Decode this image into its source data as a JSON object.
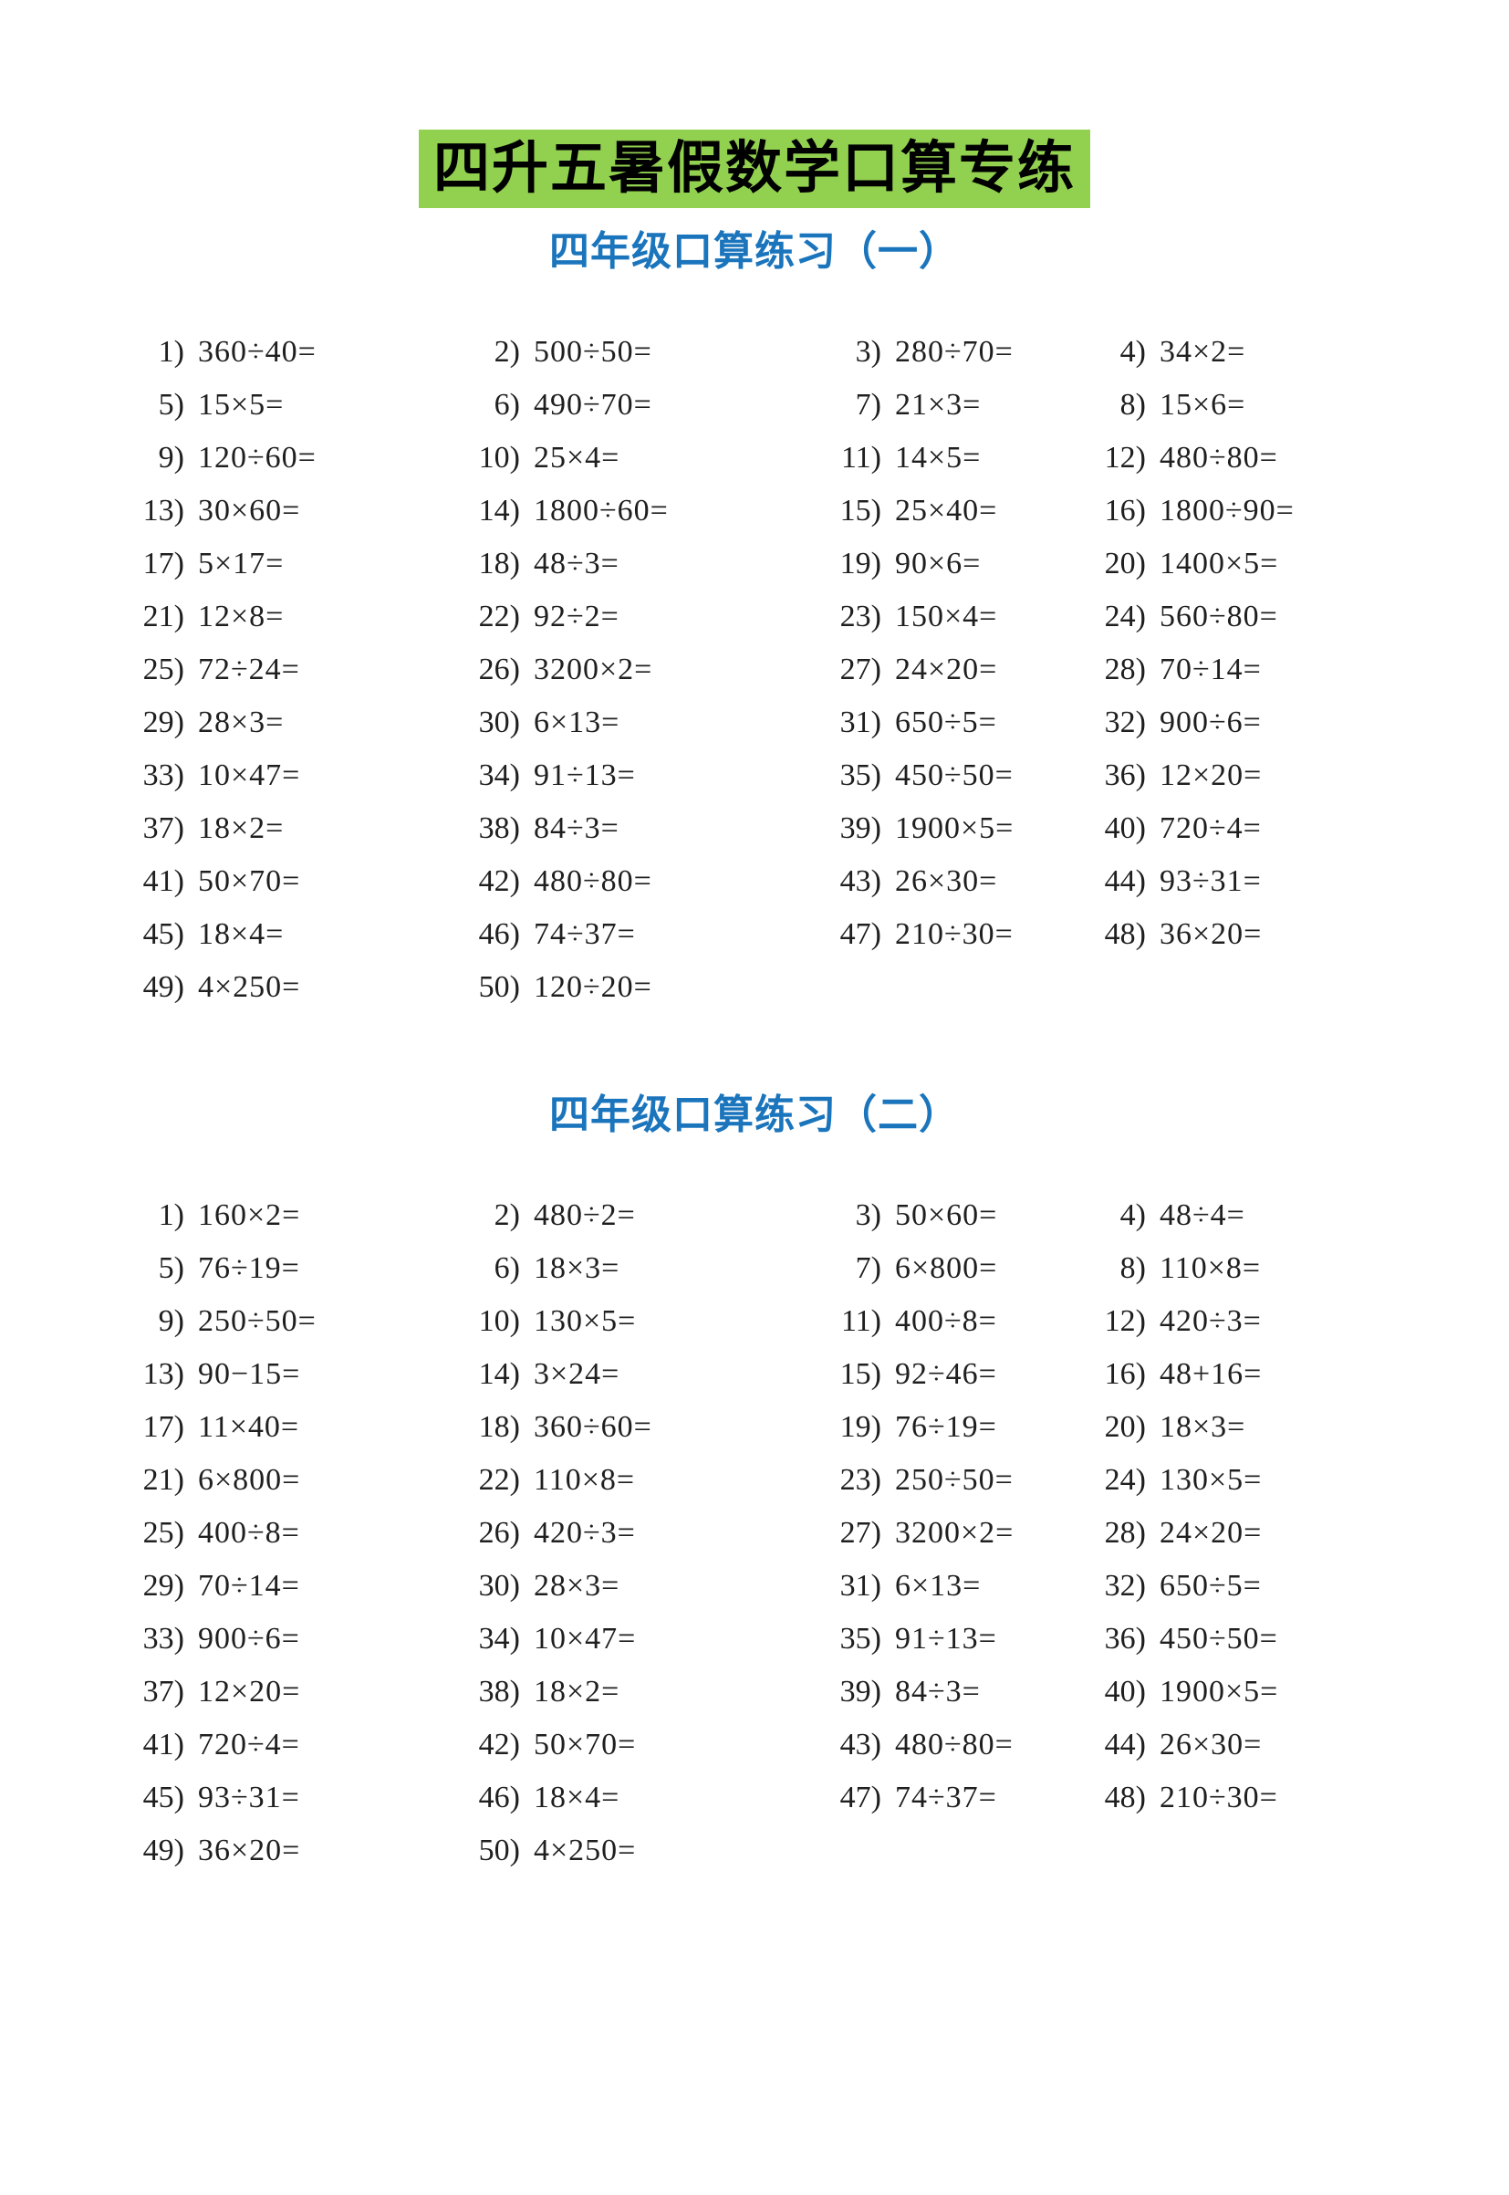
{
  "document": {
    "title": "四升五暑假数学口算专练",
    "colors": {
      "title_highlight": "#92d050",
      "heading_blue": "#1b75bc",
      "text": "#1f1f1f",
      "page_background": "#ffffff"
    }
  },
  "sections": [
    {
      "heading": "四年级口算练习（一）",
      "problems": [
        {
          "n": "1)",
          "expr": "360÷40="
        },
        {
          "n": "2)",
          "expr": "500÷50="
        },
        {
          "n": "3)",
          "expr": "280÷70="
        },
        {
          "n": "4)",
          "expr": "34×2="
        },
        {
          "n": "5)",
          "expr": "15×5="
        },
        {
          "n": "6)",
          "expr": "490÷70="
        },
        {
          "n": "7)",
          "expr": "21×3="
        },
        {
          "n": "8)",
          "expr": "15×6="
        },
        {
          "n": "9)",
          "expr": "120÷60="
        },
        {
          "n": "10)",
          "expr": "25×4="
        },
        {
          "n": "11)",
          "expr": "14×5="
        },
        {
          "n": "12)",
          "expr": "480÷80="
        },
        {
          "n": "13)",
          "expr": "30×60="
        },
        {
          "n": "14)",
          "expr": "1800÷60="
        },
        {
          "n": "15)",
          "expr": "25×40="
        },
        {
          "n": "16)",
          "expr": "1800÷90="
        },
        {
          "n": "17)",
          "expr": "5×17="
        },
        {
          "n": "18)",
          "expr": "48÷3="
        },
        {
          "n": "19)",
          "expr": "90×6="
        },
        {
          "n": "20)",
          "expr": "1400×5="
        },
        {
          "n": "21)",
          "expr": "12×8="
        },
        {
          "n": "22)",
          "expr": "92÷2="
        },
        {
          "n": "23)",
          "expr": "150×4="
        },
        {
          "n": "24)",
          "expr": "560÷80="
        },
        {
          "n": "25)",
          "expr": "72÷24="
        },
        {
          "n": "26)",
          "expr": "3200×2="
        },
        {
          "n": "27)",
          "expr": "24×20="
        },
        {
          "n": "28)",
          "expr": "70÷14="
        },
        {
          "n": "29)",
          "expr": "28×3="
        },
        {
          "n": "30)",
          "expr": "6×13="
        },
        {
          "n": "31)",
          "expr": "650÷5="
        },
        {
          "n": "32)",
          "expr": "900÷6="
        },
        {
          "n": "33)",
          "expr": "10×47="
        },
        {
          "n": "34)",
          "expr": "91÷13="
        },
        {
          "n": "35)",
          "expr": "450÷50="
        },
        {
          "n": "36)",
          "expr": "12×20="
        },
        {
          "n": "37)",
          "expr": "18×2="
        },
        {
          "n": "38)",
          "expr": "84÷3="
        },
        {
          "n": "39)",
          "expr": "1900×5="
        },
        {
          "n": "40)",
          "expr": "720÷4="
        },
        {
          "n": "41)",
          "expr": "50×70="
        },
        {
          "n": "42)",
          "expr": "480÷80="
        },
        {
          "n": "43)",
          "expr": "26×30="
        },
        {
          "n": "44)",
          "expr": "93÷31="
        },
        {
          "n": "45)",
          "expr": "18×4="
        },
        {
          "n": "46)",
          "expr": "74÷37="
        },
        {
          "n": "47)",
          "expr": "210÷30="
        },
        {
          "n": "48)",
          "expr": "36×20="
        },
        {
          "n": "49)",
          "expr": "4×250="
        },
        {
          "n": "50)",
          "expr": "120÷20="
        }
      ]
    },
    {
      "heading": "四年级口算练习（二）",
      "problems": [
        {
          "n": "1)",
          "expr": "160×2="
        },
        {
          "n": "2)",
          "expr": "480÷2="
        },
        {
          "n": "3)",
          "expr": "50×60="
        },
        {
          "n": "4)",
          "expr": "48÷4="
        },
        {
          "n": "5)",
          "expr": "76÷19="
        },
        {
          "n": "6)",
          "expr": "18×3="
        },
        {
          "n": "7)",
          "expr": "6×800="
        },
        {
          "n": "8)",
          "expr": "110×8="
        },
        {
          "n": "9)",
          "expr": "250÷50="
        },
        {
          "n": "10)",
          "expr": "130×5="
        },
        {
          "n": "11)",
          "expr": "400÷8="
        },
        {
          "n": "12)",
          "expr": "420÷3="
        },
        {
          "n": "13)",
          "expr": "90−15="
        },
        {
          "n": "14)",
          "expr": "3×24="
        },
        {
          "n": "15)",
          "expr": "92÷46="
        },
        {
          "n": "16)",
          "expr": "48+16="
        },
        {
          "n": "17)",
          "expr": "11×40="
        },
        {
          "n": "18)",
          "expr": "360÷60="
        },
        {
          "n": "19)",
          "expr": "76÷19="
        },
        {
          "n": "20)",
          "expr": "18×3="
        },
        {
          "n": "21)",
          "expr": "6×800="
        },
        {
          "n": "22)",
          "expr": "110×8="
        },
        {
          "n": "23)",
          "expr": "250÷50="
        },
        {
          "n": "24)",
          "expr": "130×5="
        },
        {
          "n": "25)",
          "expr": "400÷8="
        },
        {
          "n": "26)",
          "expr": "420÷3="
        },
        {
          "n": "27)",
          "expr": "3200×2="
        },
        {
          "n": "28)",
          "expr": "24×20="
        },
        {
          "n": "29)",
          "expr": "70÷14="
        },
        {
          "n": "30)",
          "expr": "28×3="
        },
        {
          "n": "31)",
          "expr": "6×13="
        },
        {
          "n": "32)",
          "expr": "650÷5="
        },
        {
          "n": "33)",
          "expr": "900÷6="
        },
        {
          "n": "34)",
          "expr": "10×47="
        },
        {
          "n": "35)",
          "expr": "91÷13="
        },
        {
          "n": "36)",
          "expr": "450÷50="
        },
        {
          "n": "37)",
          "expr": "12×20="
        },
        {
          "n": "38)",
          "expr": "18×2="
        },
        {
          "n": "39)",
          "expr": "84÷3="
        },
        {
          "n": "40)",
          "expr": "1900×5="
        },
        {
          "n": "41)",
          "expr": "720÷4="
        },
        {
          "n": "42)",
          "expr": "50×70="
        },
        {
          "n": "43)",
          "expr": "480÷80="
        },
        {
          "n": "44)",
          "expr": "26×30="
        },
        {
          "n": "45)",
          "expr": "93÷31="
        },
        {
          "n": "46)",
          "expr": "18×4="
        },
        {
          "n": "47)",
          "expr": "74÷37="
        },
        {
          "n": "48)",
          "expr": "210÷30="
        },
        {
          "n": "49)",
          "expr": "36×20="
        },
        {
          "n": "50)",
          "expr": "4×250="
        }
      ]
    }
  ]
}
